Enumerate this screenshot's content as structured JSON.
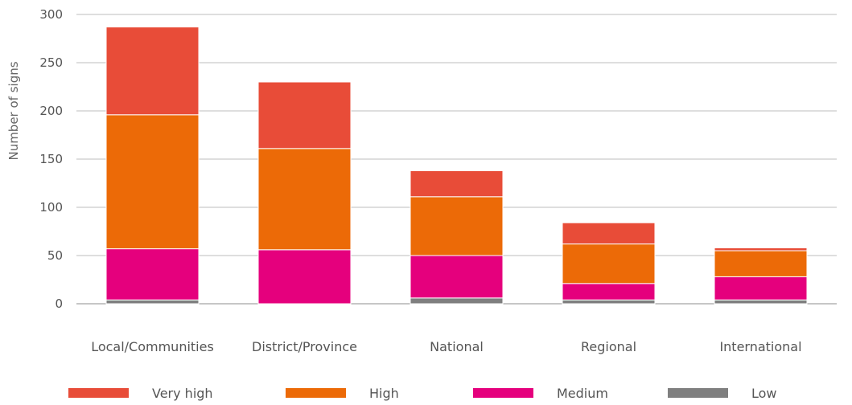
{
  "chart_data": {
    "type": "bar",
    "stacked": true,
    "title": "",
    "xlabel": "",
    "ylabel": "Number of signs",
    "ylim": [
      0,
      300
    ],
    "yticks": [
      0,
      50,
      100,
      150,
      200,
      250,
      300
    ],
    "grid": true,
    "legend_position": "bottom",
    "categories": [
      "Local/Communities",
      "District/Province",
      "National",
      "Regional",
      "International"
    ],
    "series": [
      {
        "name": "Low",
        "color": "#7f7f7f",
        "values": [
          4,
          0,
          6,
          4,
          4
        ]
      },
      {
        "name": "Medium",
        "color": "#e5007d",
        "values": [
          53,
          56,
          44,
          17,
          24
        ]
      },
      {
        "name": "High",
        "color": "#ec6a07",
        "values": [
          139,
          105,
          61,
          41,
          27
        ]
      },
      {
        "name": "Very high",
        "color": "#e84c38",
        "values": [
          91,
          69,
          27,
          22,
          3
        ]
      }
    ],
    "legend_order": [
      "Very high",
      "High",
      "Medium",
      "Low"
    ]
  }
}
